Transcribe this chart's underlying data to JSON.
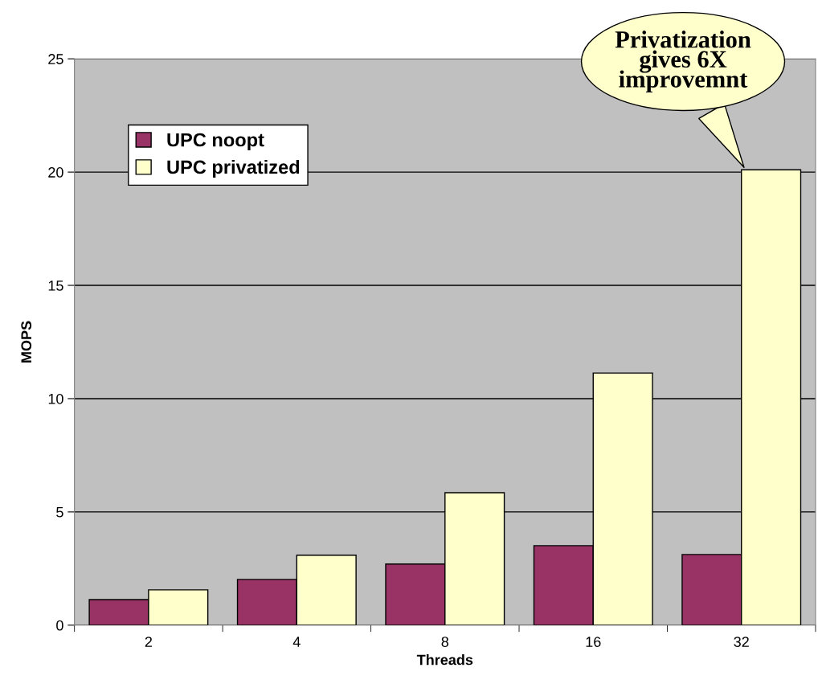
{
  "chart_data": {
    "type": "bar",
    "xlabel": "Threads",
    "ylabel": "MOPS",
    "categories": [
      "2",
      "4",
      "8",
      "16",
      "32"
    ],
    "series": [
      {
        "name": "UPC noopt",
        "color": "#993366",
        "values": [
          1.13,
          2.02,
          2.7,
          3.51,
          3.12
        ]
      },
      {
        "name": "UPC privatized",
        "color": "#ffffcc",
        "values": [
          1.56,
          3.09,
          5.85,
          11.13,
          20.1
        ]
      }
    ],
    "ylim": [
      0,
      25
    ],
    "yticks": [
      0,
      5,
      10,
      15,
      20,
      25
    ],
    "grid": "y",
    "legend": "top left",
    "annotations": [
      "Privatization\ngives 6X\nimprovemnt"
    ]
  }
}
